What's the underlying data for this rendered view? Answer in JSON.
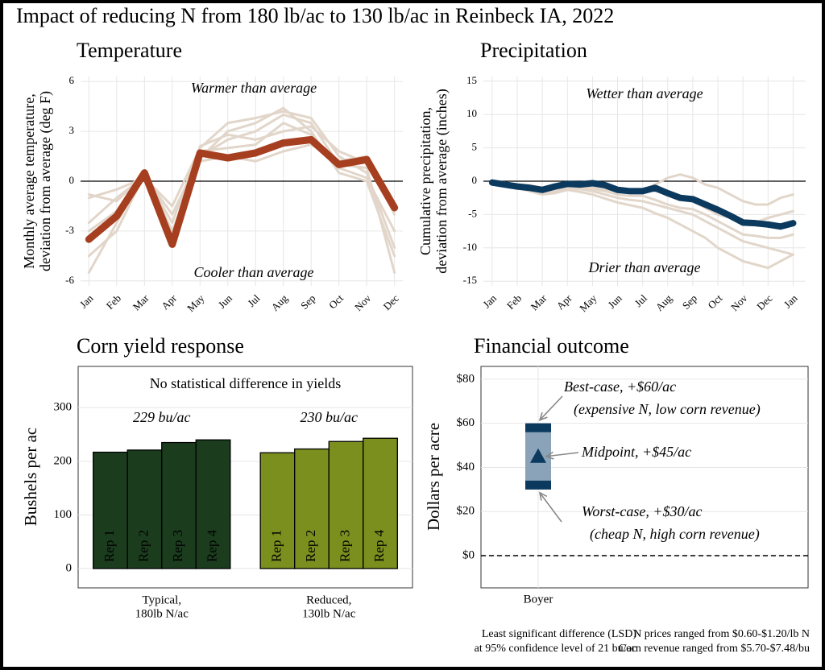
{
  "title": "Impact of reducing N from 180 lb/ac to 130 lb/ac in Reinbeck IA, 2022",
  "chart_data": [
    {
      "type": "line",
      "title": "Temperature",
      "ylabel": [
        "Monthly average temperature,",
        "deviation from average (deg F)"
      ],
      "categories": [
        "Jan",
        "Feb",
        "Mar",
        "Apr",
        "May",
        "Jun",
        "Jul",
        "Aug",
        "Sep",
        "Oct",
        "Nov",
        "Dec"
      ],
      "annotations": [
        "Warmer than average",
        "Cooler than average"
      ],
      "ylim": [
        -6.3,
        6.3
      ],
      "yticks": [
        6,
        3,
        0,
        -3,
        -6
      ],
      "reference_line": 0,
      "grid": true,
      "series": [
        {
          "color": "#e2d6ca",
          "values": [
            -1,
            -0.5,
            0.2,
            -1.5,
            2,
            3.5,
            3.8,
            4.2,
            3.8,
            1.5,
            0.5,
            -4
          ]
        },
        {
          "color": "#e2d6ca",
          "values": [
            -2.5,
            -1,
            0.3,
            -2,
            1.5,
            2.5,
            3,
            4,
            3.5,
            1,
            0.8,
            -5.5
          ]
        },
        {
          "color": "#e2d6ca",
          "values": [
            -4.5,
            -3,
            0.4,
            -3.5,
            1.8,
            2,
            2.2,
            3.5,
            2.8,
            0.8,
            0.2,
            -3
          ]
        },
        {
          "color": "#e2d6ca",
          "values": [
            -5.5,
            -2.5,
            0.5,
            -3,
            1.2,
            1.5,
            1.2,
            1.8,
            2.2,
            1.2,
            1.5,
            -2
          ]
        },
        {
          "color": "#e2d6ca",
          "values": [
            -3,
            -1.8,
            0.5,
            -3.2,
            1.4,
            3,
            3.5,
            4.4,
            3,
            0.5,
            0,
            -4.5
          ]
        },
        {
          "color": "#e2d6ca",
          "values": [
            -0.8,
            -1.2,
            0.4,
            -2.5,
            2.1,
            2.8,
            2.5,
            3,
            3.3,
            1.8,
            1.1,
            -1.5
          ]
        },
        {
          "color": "#a63f1f",
          "values": [
            -3.5,
            -2.1,
            0.5,
            -3.8,
            1.7,
            1.4,
            1.7,
            2.3,
            2.5,
            1.0,
            1.3,
            -1.6
          ]
        }
      ]
    },
    {
      "type": "line",
      "title": "Precipitation",
      "ylabel": [
        "Cumulative precipitation,",
        "deviation from average (inches)"
      ],
      "x": [
        0,
        0.5,
        1,
        1.5,
        2,
        2.5,
        3,
        3.5,
        4,
        4.5,
        5,
        5.5,
        6,
        6.5,
        7,
        7.5,
        8,
        8.5,
        9,
        9.5,
        10,
        10.5,
        11,
        11.5,
        12
      ],
      "xlim": [
        -0.35,
        12.5
      ],
      "xticks": [
        {
          "value": 0,
          "label": "Jan"
        },
        {
          "value": 1,
          "label": "Feb"
        },
        {
          "value": 2,
          "label": "Mar"
        },
        {
          "value": 3,
          "label": "Apr"
        },
        {
          "value": 4,
          "label": "May"
        },
        {
          "value": 5,
          "label": "Jun"
        },
        {
          "value": 6,
          "label": "Jul"
        },
        {
          "value": 7,
          "label": "Aug"
        },
        {
          "value": 8,
          "label": "Sep"
        },
        {
          "value": 9,
          "label": "Oct"
        },
        {
          "value": 10,
          "label": "Nov"
        },
        {
          "value": 11,
          "label": "Dec"
        },
        {
          "value": 12,
          "label": "Jan"
        }
      ],
      "annotations": [
        "Wetter than average",
        "Drier than average"
      ],
      "ylim": [
        -15.7,
        15.7
      ],
      "yticks": [
        15,
        10,
        5,
        0,
        -5,
        -10,
        -15
      ],
      "reference_line": 0,
      "grid": true,
      "series": [
        {
          "color": "#e2d6ca",
          "values": [
            0,
            -0.3,
            -0.5,
            -0.6,
            -1,
            -0.8,
            -0.5,
            -0.7,
            -1,
            -1.2,
            -1.5,
            -1.6,
            -1.4,
            -0.5,
            0.5,
            1,
            0.5,
            -0.5,
            -1,
            -2,
            -3,
            -3.5,
            -3.5,
            -2.5,
            -2
          ]
        },
        {
          "color": "#e2d6ca",
          "values": [
            0,
            -0.5,
            -1,
            -1.3,
            -1.8,
            -1.5,
            -1,
            -1.2,
            -1.5,
            -2,
            -2.5,
            -2.8,
            -3,
            -3.5,
            -4,
            -4.5,
            -5,
            -6,
            -7,
            -8,
            -9,
            -9.5,
            -10,
            -10.5,
            -11
          ]
        },
        {
          "color": "#e2d6ca",
          "values": [
            0,
            -0.4,
            -0.8,
            -1,
            -1.3,
            -1.2,
            -0.8,
            -0.9,
            -1.2,
            -1.5,
            -2,
            -2.2,
            -2.2,
            -2.8,
            -3.5,
            -4,
            -4.2,
            -5,
            -6,
            -7,
            -8,
            -8.2,
            -8.5,
            -8.5,
            -8
          ]
        },
        {
          "color": "#e2d6ca",
          "values": [
            0,
            -0.2,
            -0.6,
            -0.8,
            -1,
            -0.7,
            -0.3,
            -0.4,
            -0.6,
            -0.9,
            -1.2,
            -1.4,
            -1.2,
            -1.5,
            -2,
            -2.5,
            -3,
            -4,
            -5,
            -5.5,
            -6,
            -6.2,
            -5.5,
            -5,
            -4.5
          ]
        },
        {
          "color": "#e2d6ca",
          "values": [
            0,
            -0.5,
            -1,
            -1.5,
            -2,
            -1.8,
            -1.3,
            -1.6,
            -2,
            -2.6,
            -3.2,
            -3.6,
            -4,
            -4.8,
            -5.5,
            -6.5,
            -7.5,
            -8.5,
            -10,
            -11,
            -12,
            -12.5,
            -13,
            -12,
            -11
          ]
        },
        {
          "color": "#0b3a5e",
          "values": [
            -0.2,
            -0.5,
            -0.8,
            -1.0,
            -1.3,
            -0.8,
            -0.4,
            -0.5,
            -0.3,
            -0.6,
            -1.3,
            -1.5,
            -1.5,
            -1.0,
            -1.8,
            -2.5,
            -2.7,
            -3.5,
            -4.3,
            -5.2,
            -6.2,
            -6.3,
            -6.5,
            -6.8,
            -6.3
          ]
        }
      ]
    },
    {
      "type": "bar",
      "title": "Corn yield response",
      "ylabel": [
        "Bushels per ac"
      ],
      "annotations": [
        "No statistical difference in yields"
      ],
      "bar_labels": [
        "Rep 1",
        "Rep 2",
        "Rep 3",
        "Rep 4"
      ],
      "groups": [
        {
          "name": [
            "Typical,",
            "180lb N/ac"
          ],
          "label": "229 bu/ac",
          "color": "#1b3d1e",
          "values": [
            217,
            221,
            235,
            240
          ]
        },
        {
          "name": [
            "Reduced,",
            "130lb N/ac"
          ],
          "label": "230 bu/ac",
          "color": "#7b8f1e",
          "values": [
            216,
            223,
            237,
            243
          ]
        }
      ],
      "ylim": [
        -36,
        377
      ],
      "yticks": [
        0,
        100,
        200,
        300
      ],
      "grid": true,
      "footnote": [
        "Least significant difference (LSD)",
        "at 95% confidence level of 21 bu/ac"
      ]
    },
    {
      "type": "range",
      "title": "Financial outcome",
      "ylabel": [
        "Dollars per acre"
      ],
      "category": "Boyer",
      "low": 30,
      "high": 60,
      "mid": 45,
      "color": "#8aa3b9",
      "cap_color": "#0b3a5e",
      "annotations": [
        "Best-case, +$60/ac",
        "(expensive N, low corn revenue)",
        "Midpoint, +$45/ac",
        "Worst-case, +$30/ac",
        "(cheap N,  high corn revenue)"
      ],
      "ylim": [
        -14.6,
        85.8
      ],
      "yticks": [
        {
          "value": 0,
          "label": "$0"
        },
        {
          "value": 20,
          "label": "$20"
        },
        {
          "value": 40,
          "label": "$40"
        },
        {
          "value": 60,
          "label": "$60"
        },
        {
          "value": 80,
          "label": "$80"
        }
      ],
      "reference_line": 0,
      "grid": true,
      "footnote": [
        "N prices ranged from $0.60-$1.20/lb N",
        "Corn revenue ranged from $5.70-$7.48/bu"
      ]
    }
  ]
}
